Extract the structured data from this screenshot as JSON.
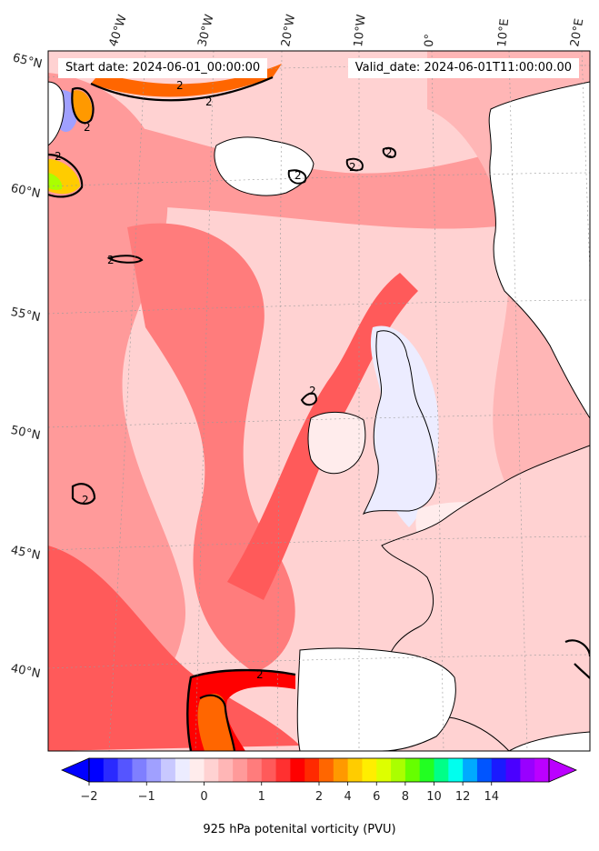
{
  "header": {
    "start_date": "Start date: 2024-06-01_00:00:00",
    "valid_date": "Valid_date: 2024-06-01T11:00:00.00"
  },
  "axes": {
    "lat_labels": [
      "65°N",
      "60°N",
      "55°N",
      "50°N",
      "45°N",
      "40°N"
    ],
    "lon_labels": [
      "40°W",
      "30°W",
      "20°W",
      "10°W",
      "0°",
      "10°E",
      "20°E"
    ]
  },
  "colorbar": {
    "label": "925 hPa potenital vorticity (PVU)",
    "tick_labels": [
      "−2",
      "−1",
      "0",
      "1",
      "2",
      "4",
      "6",
      "8",
      "10",
      "12",
      "14"
    ],
    "colors": [
      "#0000ff",
      "#2a2aff",
      "#5555ff",
      "#7f7fff",
      "#a0a0ff",
      "#c8c8ff",
      "#ececff",
      "#ffecec",
      "#ffd2d2",
      "#ffb6b6",
      "#ff9a9a",
      "#ff7c7c",
      "#ff5a5a",
      "#ff3030",
      "#ff0000",
      "#ff2a00",
      "#ff6600",
      "#ff9900",
      "#ffcc00",
      "#ffee00",
      "#ddff00",
      "#aaff00",
      "#66ff00",
      "#22ff22",
      "#00ff88",
      "#00ffee",
      "#00aaff",
      "#0055ff",
      "#1a1aff",
      "#4a00ff",
      "#9900ff",
      "#bb00ff"
    ]
  },
  "contours": {
    "level_label": "2"
  },
  "colors": {
    "land": "#ffffff",
    "coast": "#000000",
    "contour": "#000000"
  }
}
